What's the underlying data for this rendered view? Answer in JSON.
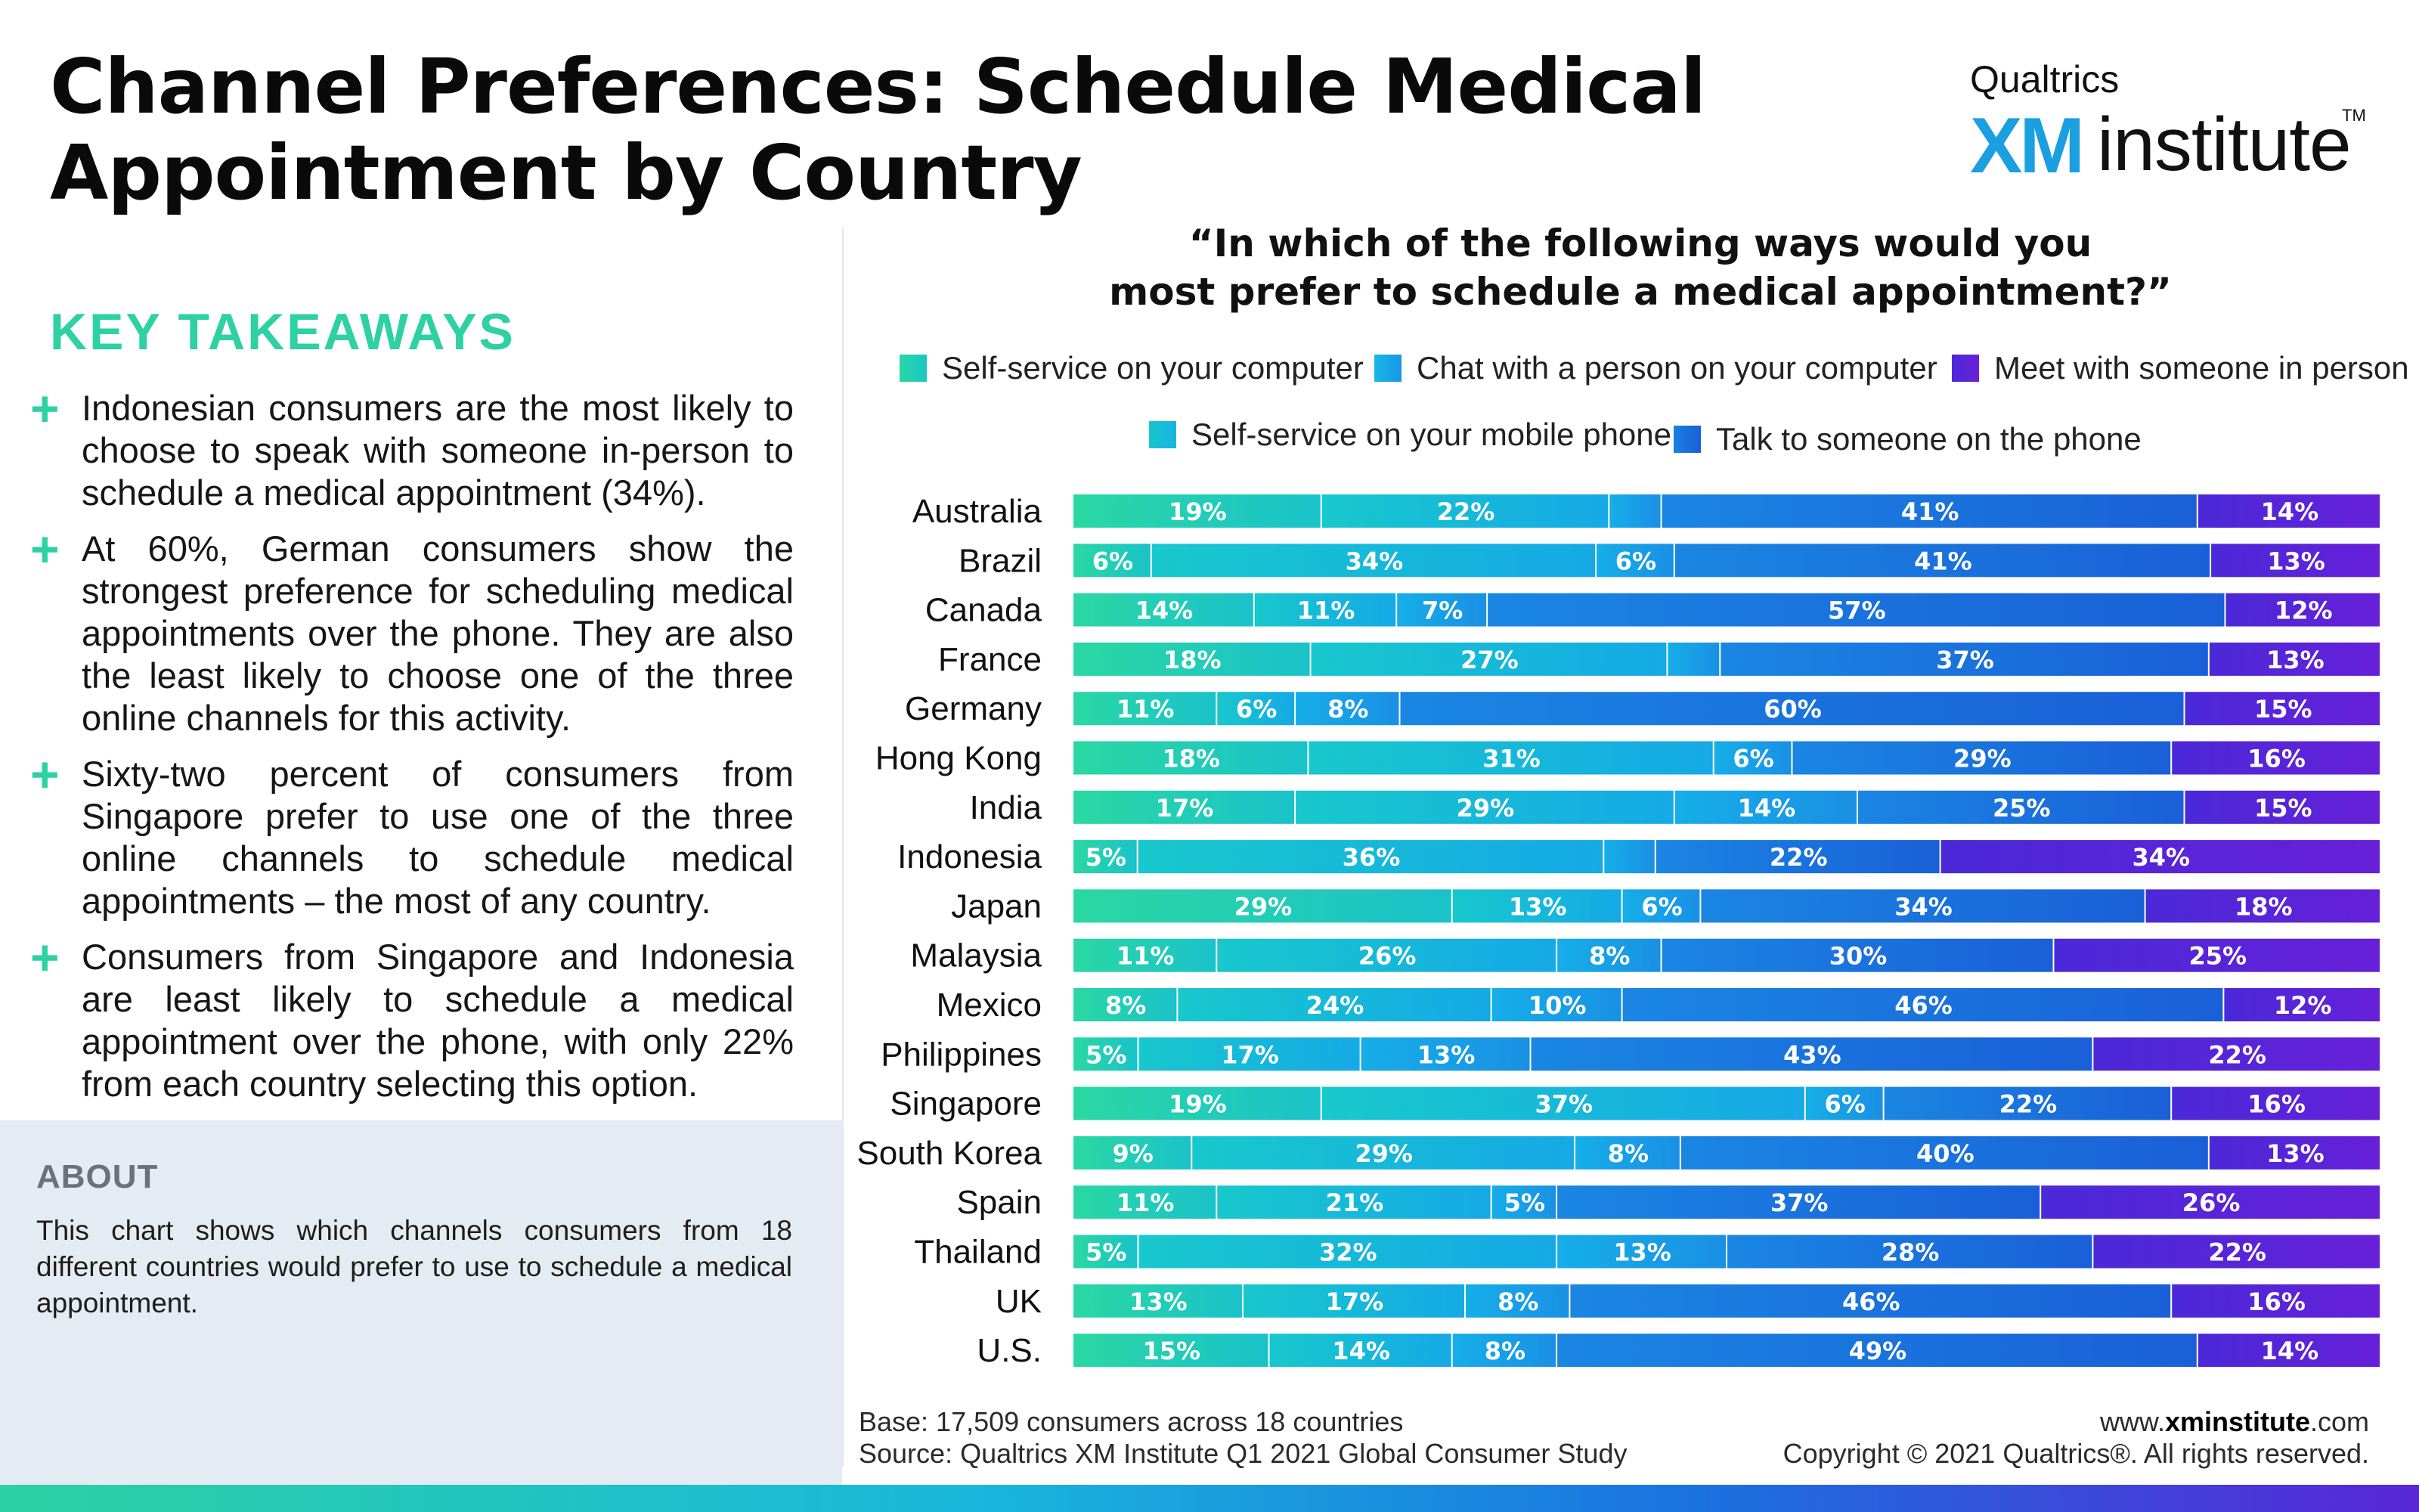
{
  "title": "Channel Preferences: Schedule Medical Appointment by Country",
  "logo": {
    "top": "Qualtrics",
    "xm": "XM",
    "institute": "institute",
    "tm": "TM"
  },
  "key_takeaways": {
    "heading": "KEY TAKEAWAYS",
    "items": [
      "Indonesian consumers are the most likely to choose to speak with someone in-person to schedule a medical appointment (34%).",
      "At 60%, German consumers show the strongest preference for scheduling medical appointments over the phone. They are also the least likely to choose one of the three online channels for this activity.",
      "Sixty-two percent of consumers from Singapore prefer to use one of the three online channels to schedule medical appointments – the most of any country.",
      "Consumers from Singapore and Indonesia are least likely to schedule a medical appointment over the phone, with only 22% from each country selecting this option."
    ]
  },
  "about": {
    "heading": "ABOUT",
    "text": "This chart shows which channels consumers from 18 different countries would prefer to use to schedule a medical appointment."
  },
  "footer": {
    "base": "Base: 17,509 consumers across 18 countries",
    "source": "Source: Qualtrics XM Institute Q1 2021 Global Consumer Study",
    "site_prefix": "www.",
    "site_bold": "xminstitute",
    "site_suffix": ".com",
    "copyright": "Copyright © 2021 Qualtrics®. All rights reserved."
  },
  "colors": {
    "accent_green": "#2dd1a3",
    "series": [
      "#28d6a4",
      "#18bedc",
      "#16a6e8",
      "#1a6fdc",
      "#5b24d8"
    ]
  },
  "chart_data": {
    "type": "bar",
    "orientation": "horizontal",
    "stacked": true,
    "normalized": true,
    "title": "“In which of the following ways would you most prefer to schedule a medical appointment?”",
    "title_lines": [
      "“In which of the following ways would you",
      "most prefer to schedule a medical appointment?”"
    ],
    "categories": [
      "Australia",
      "Brazil",
      "Canada",
      "France",
      "Germany",
      "Hong Kong",
      "India",
      "Indonesia",
      "Japan",
      "Malaysia",
      "Mexico",
      "Philippines",
      "Singapore",
      "South Korea",
      "Spain",
      "Thailand",
      "UK",
      "U.S."
    ],
    "series": [
      {
        "name": "Self-service on your computer",
        "values": [
          19,
          6,
          14,
          18,
          11,
          18,
          17,
          5,
          29,
          11,
          8,
          5,
          19,
          9,
          11,
          5,
          13,
          15
        ]
      },
      {
        "name": "Self-service on your mobile phone",
        "values": [
          22,
          34,
          11,
          27,
          6,
          31,
          29,
          36,
          13,
          26,
          24,
          17,
          37,
          29,
          21,
          32,
          17,
          14
        ]
      },
      {
        "name": "Chat with a person on your computer",
        "values": [
          4,
          6,
          7,
          4,
          8,
          6,
          14,
          4,
          6,
          8,
          10,
          13,
          6,
          8,
          5,
          13,
          8,
          8
        ]
      },
      {
        "name": "Talk to someone on the phone",
        "values": [
          41,
          41,
          57,
          37,
          60,
          29,
          25,
          22,
          34,
          30,
          46,
          43,
          22,
          40,
          37,
          28,
          46,
          49
        ]
      },
      {
        "name": "Meet with someone in person",
        "values": [
          14,
          13,
          12,
          13,
          15,
          16,
          15,
          34,
          18,
          25,
          12,
          22,
          16,
          13,
          26,
          22,
          16,
          14
        ]
      }
    ],
    "data_labels_shown_min": 5,
    "value_suffix": "%",
    "legend_position": "top"
  }
}
